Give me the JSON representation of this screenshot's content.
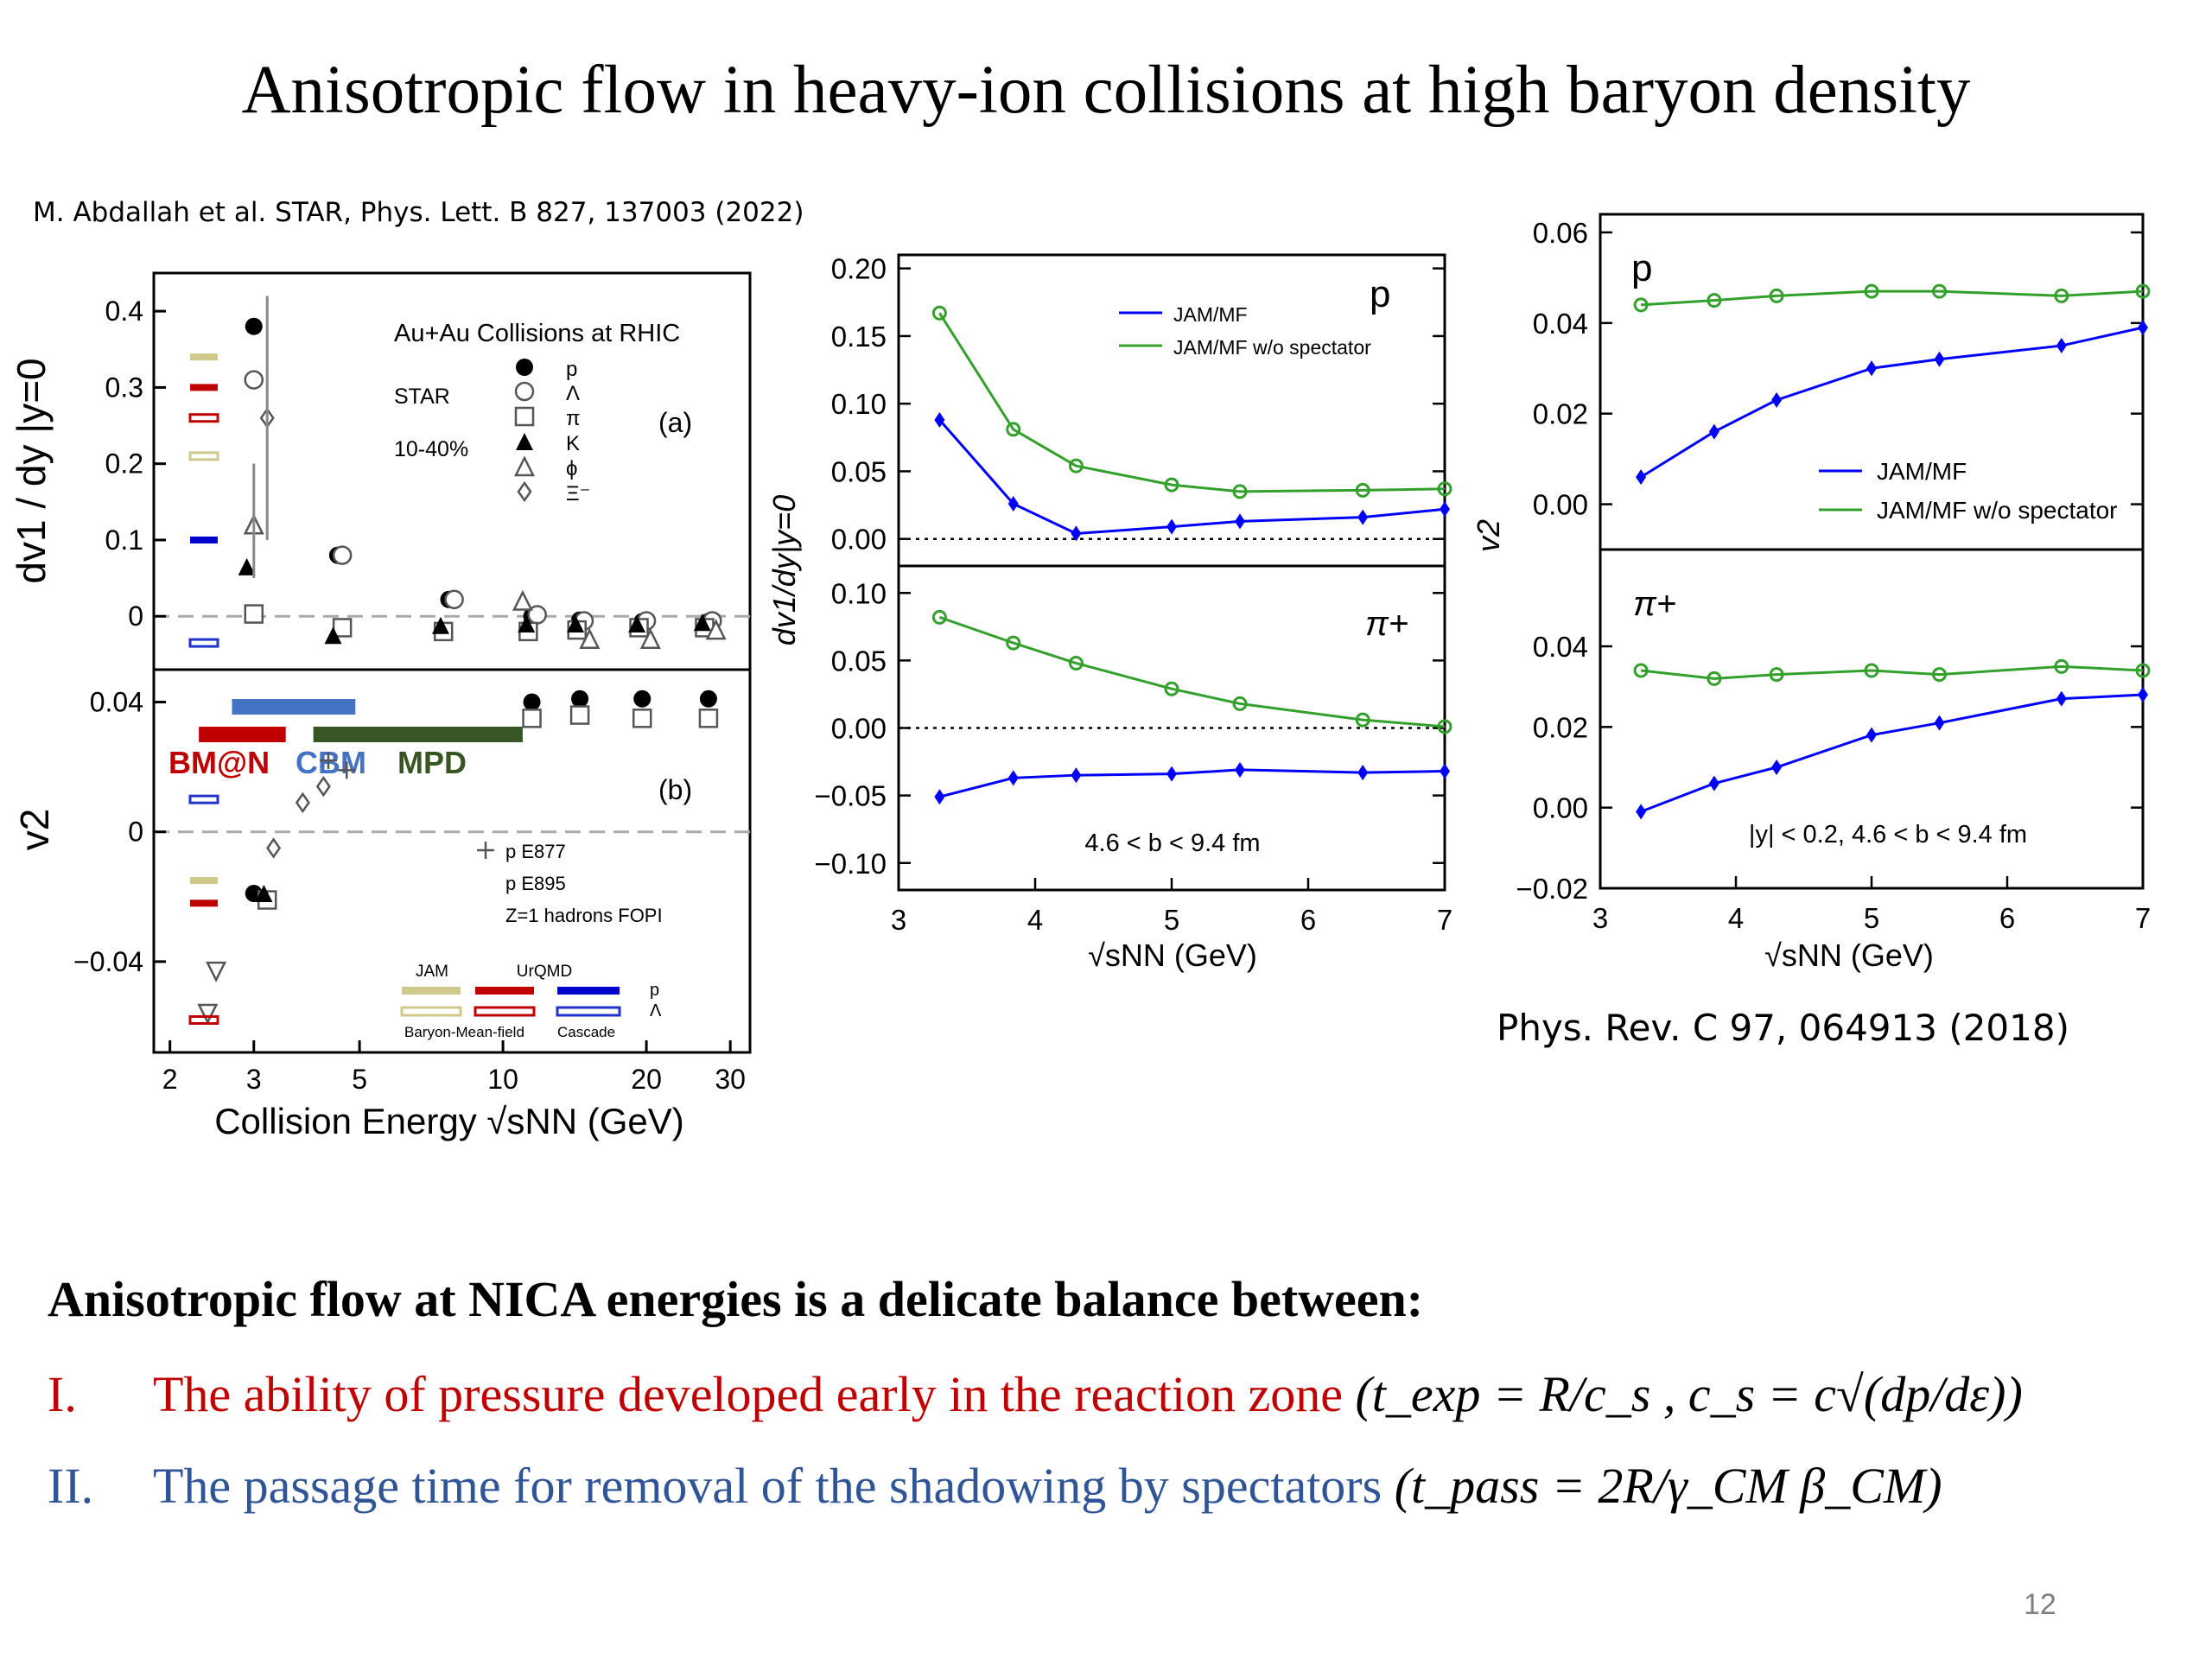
{
  "slide": {
    "title": "Anisotropic flow in heavy-ion collisions at  high baryon density",
    "citation_left": "M. Abdallah et al. STAR, Phys. Lett. B 827, 137003 (2022)",
    "citation_right": "Phys. Rev. C 97, 064913 (2018)",
    "bottom_heading": "Anisotropic flow at NICA energies is a delicate balance between:",
    "bullets": [
      {
        "num": "I.",
        "text": "The ability of pressure developed early in the reaction zone ",
        "formula": "(t_exp = R/c_s , c_s = c√(dp/dε))",
        "color": "#c00000"
      },
      {
        "num": "II.",
        "text": "The passage time for removal of the shadowing by spectators ",
        "formula": "(t_pass = 2R/γ_CM β_CM)",
        "color": "#2f5597"
      }
    ],
    "page_number": "12"
  },
  "chart_data": [
    {
      "type": "scatter",
      "panel": "STAR dv1/dy (a)",
      "ylabel": "dv1 / dy |y=0",
      "xlabel": "Collision Energy √sNN (GeV)",
      "xscale": "log",
      "xticks": [
        "2",
        "3",
        "5",
        "10",
        "20",
        "30"
      ],
      "yticks": [
        "0",
        "0.1",
        "0.2",
        "0.3",
        "0.4"
      ],
      "ylim": [
        -0.07,
        0.45
      ],
      "texts": {
        "header": "Au+Au Collisions at RHIC",
        "exp": "STAR",
        "cent": "10-40%",
        "label": "(a)"
      },
      "legend": [
        "p",
        "Λ",
        "π",
        "K",
        "ϕ",
        "Ξ⁻"
      ],
      "series": [
        {
          "name": "p",
          "points": [
            [
              3.0,
              0.38
            ],
            [
              4.5,
              0.08
            ],
            [
              7.7,
              0.022
            ],
            [
              11.5,
              0.0
            ],
            [
              14.5,
              -0.005
            ],
            [
              19.6,
              -0.007
            ],
            [
              27,
              -0.007
            ]
          ]
        },
        {
          "name": "Λ",
          "points": [
            [
              3.0,
              0.31
            ],
            [
              4.6,
              0.08
            ],
            [
              7.9,
              0.022
            ],
            [
              11.8,
              0.002
            ],
            [
              14.8,
              -0.006
            ],
            [
              20,
              -0.006
            ],
            [
              27.5,
              -0.006
            ]
          ]
        },
        {
          "name": "π",
          "points": [
            [
              3.0,
              0.003
            ],
            [
              4.6,
              -0.015
            ],
            [
              7.5,
              -0.02
            ],
            [
              11.3,
              -0.02
            ],
            [
              14.3,
              -0.018
            ],
            [
              19.3,
              -0.015
            ],
            [
              26.5,
              -0.015
            ]
          ]
        },
        {
          "name": "K",
          "points": [
            [
              2.9,
              0.065
            ],
            [
              4.4,
              -0.025
            ],
            [
              7.4,
              -0.012
            ],
            [
              11.2,
              -0.01
            ],
            [
              14.2,
              -0.01
            ],
            [
              19.1,
              -0.01
            ],
            [
              26.2,
              -0.008
            ]
          ]
        },
        {
          "name": "ϕ",
          "points": [
            [
              3.0,
              0.12
            ],
            [
              11.0,
              0.02
            ],
            [
              15.2,
              -0.03
            ],
            [
              20.4,
              -0.03
            ],
            [
              28,
              -0.018
            ]
          ]
        },
        {
          "name": "Ξ⁻",
          "points": [
            [
              3.2,
              0.26
            ]
          ]
        }
      ]
    },
    {
      "type": "scatter",
      "panel": "STAR v2 (b)",
      "ylabel": "v2",
      "xlabel": "Collision Energy √sNN (GeV)",
      "xscale": "log",
      "yticks": [
        "−0.04",
        "0",
        "0.04"
      ],
      "ylim": [
        -0.068,
        0.05
      ],
      "texts": {
        "label": "(b)"
      },
      "facilities": [
        {
          "name": "BM@N",
          "color": "#c00000",
          "range": [
            2.3,
            3.5
          ]
        },
        {
          "name": "CBM",
          "color": "#4472c4",
          "range": [
            2.7,
            4.9
          ]
        },
        {
          "name": "MPD",
          "color": "#375623",
          "range": [
            4.0,
            11.0
          ]
        }
      ],
      "legend_exp": [
        {
          "name": "p  E877",
          "symbol": "cross"
        },
        {
          "name": "p  E895",
          "symbol": "diamond"
        },
        {
          "name": "Z=1 hadrons  FOPI",
          "symbol": "triangle-down"
        }
      ],
      "model_legend": {
        "titles": [
          "JAM",
          "UrQMD"
        ],
        "row_labels": [
          "p",
          "Λ"
        ],
        "bottom_labels": [
          "Baryon-Mean-field",
          "Cascade"
        ]
      },
      "series": [
        {
          "name": "p",
          "points": [
            [
              3.0,
              -0.019
            ],
            [
              11.5,
              0.04
            ],
            [
              14.5,
              0.041
            ],
            [
              19.6,
              0.041
            ],
            [
              27,
              0.041
            ]
          ]
        },
        {
          "name": "π",
          "points": [
            [
              3.2,
              -0.021
            ],
            [
              11.5,
              0.035
            ],
            [
              14.5,
              0.036
            ],
            [
              19.6,
              0.035
            ],
            [
              27,
              0.035
            ]
          ]
        },
        {
          "name": "E877",
          "points": [
            [
              4.7,
              0.019
            ],
            [
              4.3,
              0.022
            ]
          ]
        },
        {
          "name": "E895",
          "points": [
            [
              3.3,
              -0.005
            ],
            [
              3.8,
              0.009
            ],
            [
              4.2,
              0.014
            ]
          ]
        },
        {
          "name": "FOPI",
          "points": [
            [
              2.4,
              -0.056
            ],
            [
              2.5,
              -0.043
            ]
          ]
        }
      ]
    },
    {
      "type": "line",
      "panel": "JAM dv1/dy p",
      "ylabel": "dv1/dy|y=0",
      "xlabel": "√sNN (GeV)",
      "xlim": [
        3,
        7
      ],
      "ylim": [
        -0.02,
        0.21
      ],
      "yticks": [
        "0.00",
        "0.05",
        "0.10",
        "0.15",
        "0.20"
      ],
      "xticks": [
        "3",
        "4",
        "5",
        "6",
        "7"
      ],
      "particle": "p",
      "legend": [
        "JAM/MF",
        "JAM/MF w/o spectator"
      ],
      "x": [
        3.3,
        3.84,
        4.3,
        5.0,
        5.5,
        6.4,
        7.0
      ],
      "series": [
        {
          "name": "JAM/MF",
          "color": "#0000ff",
          "values": [
            0.088,
            0.026,
            0.004,
            0.009,
            0.013,
            0.016,
            0.022
          ]
        },
        {
          "name": "JAM/MF w/o spectator",
          "color": "#33a02c",
          "values": [
            0.167,
            0.081,
            0.054,
            0.04,
            0.035,
            0.036,
            0.037
          ]
        }
      ]
    },
    {
      "type": "line",
      "panel": "JAM dv1/dy pi+",
      "xlim": [
        3,
        7
      ],
      "ylim": [
        -0.12,
        0.12
      ],
      "yticks": [
        "−0.10",
        "−0.05",
        "0.00",
        "0.05",
        "0.10"
      ],
      "xticks": [
        "3",
        "4",
        "5",
        "6",
        "7"
      ],
      "particle": "π+",
      "annotation": "4.6 < b < 9.4 fm",
      "x": [
        3.3,
        3.84,
        4.3,
        5.0,
        5.5,
        6.4,
        7.0
      ],
      "series": [
        {
          "name": "JAM/MF",
          "color": "#0000ff",
          "values": [
            -0.051,
            -0.037,
            -0.035,
            -0.034,
            -0.031,
            -0.033,
            -0.032
          ]
        },
        {
          "name": "JAM/MF w/o spectator",
          "color": "#33a02c",
          "values": [
            0.082,
            0.063,
            0.048,
            0.029,
            0.018,
            0.006,
            0.001
          ]
        }
      ]
    },
    {
      "type": "line",
      "panel": "JAM v2 p",
      "ylabel": "v2",
      "xlim": [
        3,
        7
      ],
      "ylim": [
        -0.01,
        0.064
      ],
      "yticks": [
        "0.00",
        "0.02",
        "0.04",
        "0.06"
      ],
      "particle": "p",
      "legend": [
        "JAM/MF",
        "JAM/MF w/o spectator"
      ],
      "x": [
        3.3,
        3.84,
        4.3,
        5.0,
        5.5,
        6.4,
        7.0
      ],
      "series": [
        {
          "name": "JAM/MF",
          "color": "#0000ff",
          "values": [
            0.006,
            0.016,
            0.023,
            0.03,
            0.032,
            0.035,
            0.039
          ]
        },
        {
          "name": "JAM/MF w/o spectator",
          "color": "#33a02c",
          "values": [
            0.044,
            0.045,
            0.046,
            0.047,
            0.047,
            0.046,
            0.047
          ]
        }
      ]
    },
    {
      "type": "line",
      "panel": "JAM v2 pi+",
      "xlabel": "√sNN (GeV)",
      "xlim": [
        3,
        7
      ],
      "ylim": [
        -0.02,
        0.064
      ],
      "yticks": [
        "−0.02",
        "0.00",
        "0.02",
        "0.04"
      ],
      "xticks": [
        "3",
        "4",
        "5",
        "6",
        "7"
      ],
      "particle": "π+",
      "annotation": "|y| < 0.2,    4.6 < b < 9.4 fm",
      "x": [
        3.3,
        3.84,
        4.3,
        5.0,
        5.5,
        6.4,
        7.0
      ],
      "series": [
        {
          "name": "JAM/MF",
          "color": "#0000ff",
          "values": [
            -0.001,
            0.006,
            0.01,
            0.018,
            0.021,
            0.027,
            0.028
          ]
        },
        {
          "name": "JAM/MF w/o spectator",
          "color": "#33a02c",
          "values": [
            0.034,
            0.032,
            0.033,
            0.034,
            0.033,
            0.035,
            0.034
          ]
        }
      ]
    }
  ]
}
